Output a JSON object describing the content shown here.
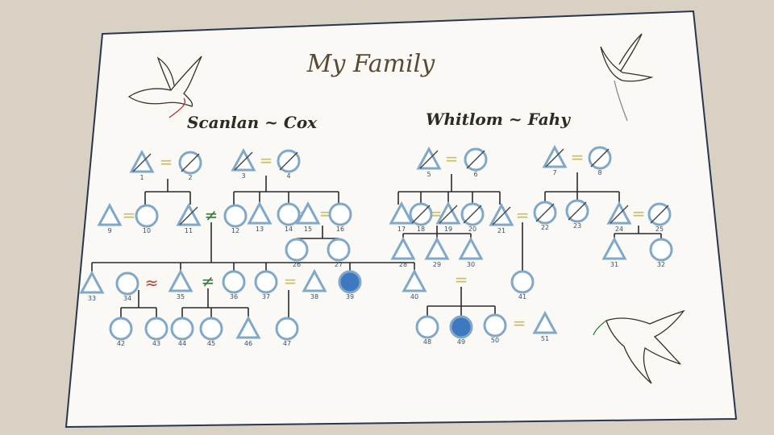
{
  "diagram": {
    "type": "genogram",
    "title": "My Family",
    "families": [
      {
        "name": "Scanlan ~ Cox"
      },
      {
        "name": "Whitlom ~ Fahy"
      }
    ],
    "people": [
      {
        "id": "1",
        "sex": "M",
        "deceased": true
      },
      {
        "id": "2",
        "sex": "F",
        "deceased": true
      },
      {
        "id": "3",
        "sex": "M",
        "deceased": true
      },
      {
        "id": "4",
        "sex": "F",
        "deceased": true
      },
      {
        "id": "5",
        "sex": "M",
        "deceased": true
      },
      {
        "id": "6",
        "sex": "F",
        "deceased": true
      },
      {
        "id": "7",
        "sex": "M",
        "deceased": true
      },
      {
        "id": "8",
        "sex": "F",
        "deceased": true
      },
      {
        "id": "9",
        "sex": "M"
      },
      {
        "id": "10",
        "sex": "F"
      },
      {
        "id": "11",
        "sex": "M",
        "deceased": true
      },
      {
        "id": "12",
        "sex": "F"
      },
      {
        "id": "13",
        "sex": "M"
      },
      {
        "id": "14",
        "sex": "F"
      },
      {
        "id": "15",
        "sex": "M"
      },
      {
        "id": "16",
        "sex": "F"
      },
      {
        "id": "17",
        "sex": "M"
      },
      {
        "id": "18",
        "sex": "F",
        "deceased": true
      },
      {
        "id": "19",
        "sex": "M",
        "deceased": true
      },
      {
        "id": "20",
        "sex": "F",
        "deceased": true
      },
      {
        "id": "21",
        "sex": "M",
        "deceased": true
      },
      {
        "id": "22",
        "sex": "F",
        "deceased": true
      },
      {
        "id": "23",
        "sex": "F",
        "deceased": true
      },
      {
        "id": "24",
        "sex": "M",
        "deceased": true
      },
      {
        "id": "25",
        "sex": "F",
        "deceased": true
      },
      {
        "id": "26",
        "sex": "F"
      },
      {
        "id": "27",
        "sex": "F"
      },
      {
        "id": "28",
        "sex": "M"
      },
      {
        "id": "29",
        "sex": "M"
      },
      {
        "id": "30",
        "sex": "M"
      },
      {
        "id": "31",
        "sex": "M"
      },
      {
        "id": "32",
        "sex": "F"
      },
      {
        "id": "33",
        "sex": "M"
      },
      {
        "id": "34",
        "sex": "F"
      },
      {
        "id": "35",
        "sex": "M"
      },
      {
        "id": "36",
        "sex": "F"
      },
      {
        "id": "37",
        "sex": "F"
      },
      {
        "id": "38",
        "sex": "M"
      },
      {
        "id": "39",
        "sex": "F",
        "filled": true
      },
      {
        "id": "40",
        "sex": "M"
      },
      {
        "id": "41",
        "sex": "F"
      },
      {
        "id": "42",
        "sex": "F"
      },
      {
        "id": "43",
        "sex": "F"
      },
      {
        "id": "44",
        "sex": "F"
      },
      {
        "id": "45",
        "sex": "F"
      },
      {
        "id": "46",
        "sex": "M"
      },
      {
        "id": "47",
        "sex": "F"
      },
      {
        "id": "48",
        "sex": "F"
      },
      {
        "id": "49",
        "sex": "F",
        "filled": true
      },
      {
        "id": "50",
        "sex": "F"
      },
      {
        "id": "51",
        "sex": "M"
      }
    ],
    "relationship_symbols": [
      "=",
      "≠",
      "≈"
    ],
    "colors": {
      "paper": "#faf9f5",
      "person_outline": "#7fa8c9",
      "person_fill_highlight": "#3d78c0",
      "marriage_line": "#cbbf57",
      "separated_mark": "#2f7d3a",
      "conflict_mark": "#c0392b",
      "line": "#2a2a2a",
      "deceased_cross": "#444444",
      "title_ink": "#5a4a35"
    },
    "decorations": [
      "bird-drawing-top-left",
      "bird-drawing-top-right",
      "bird-drawing-bottom-right"
    ]
  }
}
